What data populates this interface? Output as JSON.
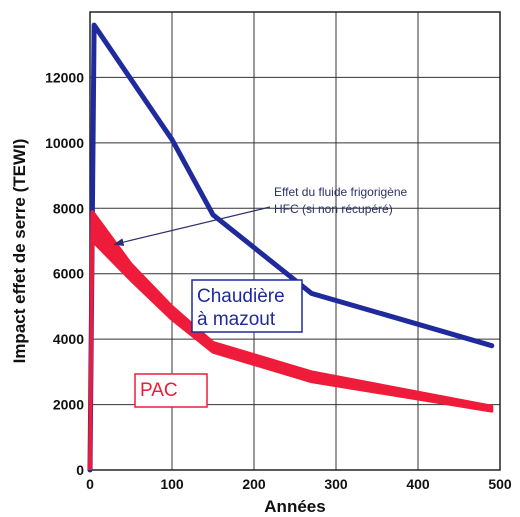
{
  "chart_data": {
    "type": "line",
    "xlabel": "Années",
    "ylabel": "Impact effet de serre (TEWI)",
    "xlim": [
      0,
      500
    ],
    "ylim": [
      0,
      14000
    ],
    "xticks": [
      0,
      100,
      200,
      300,
      400,
      500
    ],
    "yticks": [
      0,
      2000,
      4000,
      6000,
      8000,
      10000,
      12000
    ],
    "grid": true,
    "series": [
      {
        "name": "Chaudière à mazout",
        "color": "#1f2a9c",
        "points": [
          [
            0,
            0
          ],
          [
            5,
            13600
          ],
          [
            100,
            10100
          ],
          [
            150,
            7800
          ],
          [
            270,
            5400
          ],
          [
            490,
            3800
          ]
        ]
      },
      {
        "name": "PAC",
        "color": "#ee1c3a",
        "band": true,
        "upper": [
          [
            3,
            7900
          ],
          [
            50,
            6300
          ],
          [
            100,
            5000
          ],
          [
            150,
            3900
          ],
          [
            270,
            3000
          ],
          [
            490,
            1950
          ]
        ],
        "lower": [
          [
            3,
            7000
          ],
          [
            50,
            5800
          ],
          [
            100,
            4600
          ],
          [
            150,
            3600
          ],
          [
            270,
            2700
          ],
          [
            490,
            1800
          ]
        ]
      }
    ],
    "annotations": [
      {
        "text_lines": [
          "Effet du fluide frigorigène",
          "HFC (si non récupéré)"
        ],
        "arrow_to": [
          30,
          6900
        ]
      }
    ],
    "legend_labels": [
      {
        "lines": [
          "Chaudière",
          "à mazout"
        ],
        "color": "#1f2a9c"
      },
      {
        "lines": [
          "PAC"
        ],
        "color": "#ee1c3a"
      }
    ]
  }
}
